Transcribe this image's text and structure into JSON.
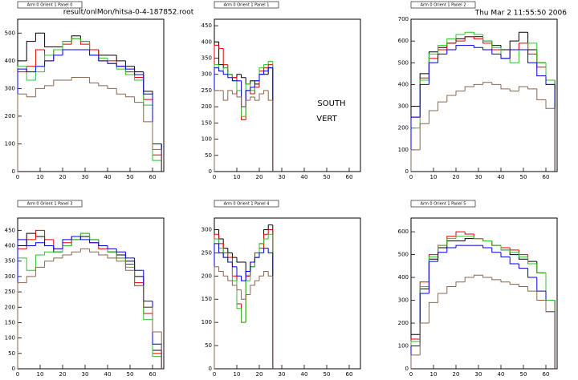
{
  "header": {
    "file": "result/onlMon/hitsa-0-4-187852.root",
    "date": "Thu Mar  2 11:55:50 2006"
  },
  "labels": [
    "SOUTH",
    "VERT"
  ],
  "chart_data": [
    {
      "type": "histogram",
      "title": "Arm 0 Orient 1 Panel 0",
      "bins": [
        0,
        4,
        8,
        12,
        16,
        20,
        24,
        28,
        32,
        36,
        40,
        44,
        48,
        52,
        56,
        60,
        64
      ],
      "xlim": [
        0,
        65
      ],
      "xticks": [
        0,
        10,
        20,
        30,
        40,
        50,
        60
      ],
      "ylim": [
        0,
        550
      ],
      "yticks": [
        0,
        100,
        200,
        300,
        400,
        500
      ],
      "series": [
        {
          "color": "#000000",
          "values": [
            400,
            470,
            500,
            450,
            450,
            470,
            490,
            470,
            440,
            420,
            420,
            400,
            380,
            360,
            290,
            100
          ]
        },
        {
          "color": "#e00000",
          "values": [
            360,
            380,
            440,
            400,
            440,
            460,
            480,
            460,
            440,
            400,
            400,
            380,
            360,
            340,
            260,
            60
          ]
        },
        {
          "color": "#30c030",
          "values": [
            380,
            330,
            360,
            420,
            440,
            470,
            480,
            470,
            420,
            410,
            390,
            370,
            350,
            330,
            240,
            40
          ]
        },
        {
          "color": "#0000e0",
          "values": [
            370,
            360,
            380,
            400,
            420,
            440,
            440,
            440,
            420,
            400,
            390,
            380,
            370,
            350,
            280,
            100
          ]
        },
        {
          "color": "#8b6450",
          "values": [
            280,
            270,
            300,
            310,
            330,
            330,
            340,
            340,
            320,
            310,
            300,
            280,
            270,
            250,
            180,
            80
          ]
        }
      ]
    },
    {
      "type": "histogram",
      "title": "Arm 0 Orient 1 Panel 1",
      "bins": [
        0,
        2,
        4,
        6,
        8,
        10,
        12,
        14,
        16,
        18,
        20,
        22,
        24,
        26
      ],
      "xlim": [
        0,
        65
      ],
      "xticks": [
        0,
        10,
        20,
        30,
        40,
        50,
        60
      ],
      "ylim": [
        0,
        470
      ],
      "yticks": [
        0,
        50,
        100,
        150,
        200,
        250,
        300,
        350,
        400,
        450
      ],
      "series": [
        {
          "color": "#000000",
          "values": [
            400,
            330,
            320,
            300,
            290,
            300,
            290,
            270,
            280,
            270,
            300,
            300,
            320
          ]
        },
        {
          "color": "#e00000",
          "values": [
            390,
            380,
            330,
            300,
            290,
            230,
            160,
            250,
            240,
            260,
            310,
            320,
            330
          ]
        },
        {
          "color": "#30c030",
          "values": [
            330,
            310,
            320,
            300,
            280,
            250,
            170,
            270,
            250,
            280,
            320,
            330,
            340
          ]
        },
        {
          "color": "#0000e0",
          "values": [
            320,
            310,
            300,
            290,
            280,
            280,
            200,
            250,
            260,
            280,
            300,
            310,
            320
          ]
        },
        {
          "color": "#8b6450",
          "values": [
            250,
            250,
            220,
            250,
            240,
            230,
            200,
            220,
            230,
            220,
            240,
            250,
            220
          ]
        }
      ]
    },
    {
      "type": "histogram",
      "title": "Arm 0 Orient 1 Panel 2",
      "bins": [
        0,
        4,
        8,
        12,
        16,
        20,
        24,
        28,
        32,
        36,
        40,
        44,
        48,
        52,
        56,
        60,
        64
      ],
      "xlim": [
        0,
        65
      ],
      "xticks": [
        0,
        10,
        20,
        30,
        40,
        50,
        60
      ],
      "ylim": [
        0,
        700
      ],
      "yticks": [
        0,
        100,
        200,
        300,
        400,
        500,
        600,
        700
      ],
      "series": [
        {
          "color": "#000000",
          "values": [
            300,
            450,
            550,
            570,
            590,
            610,
            620,
            620,
            600,
            580,
            560,
            600,
            640,
            560,
            500,
            420
          ]
        },
        {
          "color": "#e00000",
          "values": [
            250,
            430,
            520,
            560,
            590,
            600,
            620,
            610,
            590,
            560,
            520,
            560,
            590,
            540,
            480,
            400
          ]
        },
        {
          "color": "#30c030",
          "values": [
            200,
            420,
            540,
            580,
            610,
            630,
            640,
            630,
            600,
            570,
            520,
            500,
            560,
            590,
            500,
            420
          ]
        },
        {
          "color": "#0000e0",
          "values": [
            250,
            400,
            500,
            540,
            560,
            580,
            580,
            570,
            560,
            540,
            520,
            560,
            560,
            500,
            440,
            400
          ]
        },
        {
          "color": "#8b6450",
          "values": [
            100,
            220,
            280,
            320,
            350,
            370,
            390,
            400,
            410,
            400,
            380,
            370,
            390,
            380,
            330,
            290
          ]
        }
      ]
    },
    {
      "type": "histogram",
      "title": "Arm 0 Orient 1 Panel 3",
      "bins": [
        0,
        4,
        8,
        12,
        16,
        20,
        24,
        28,
        32,
        36,
        40,
        44,
        48,
        52,
        56,
        60,
        64
      ],
      "xlim": [
        0,
        65
      ],
      "xticks": [
        0,
        10,
        20,
        30,
        40,
        50,
        60
      ],
      "ylim": [
        0,
        490
      ],
      "yticks": [
        0,
        50,
        100,
        150,
        200,
        250,
        300,
        350,
        400,
        450
      ],
      "series": [
        {
          "color": "#000000",
          "values": [
            400,
            440,
            430,
            400,
            380,
            400,
            420,
            430,
            420,
            400,
            380,
            370,
            350,
            300,
            200,
            60
          ]
        },
        {
          "color": "#e00000",
          "values": [
            390,
            420,
            450,
            420,
            390,
            410,
            430,
            440,
            410,
            390,
            380,
            360,
            340,
            280,
            180,
            50
          ]
        },
        {
          "color": "#30c030",
          "values": [
            360,
            320,
            370,
            380,
            380,
            400,
            420,
            440,
            420,
            400,
            380,
            360,
            330,
            270,
            160,
            40
          ]
        },
        {
          "color": "#0000e0",
          "values": [
            420,
            400,
            410,
            400,
            390,
            420,
            430,
            420,
            410,
            400,
            390,
            380,
            360,
            320,
            220,
            80
          ]
        },
        {
          "color": "#8b6450",
          "values": [
            280,
            300,
            330,
            350,
            360,
            370,
            380,
            390,
            380,
            370,
            360,
            350,
            320,
            270,
            200,
            120
          ]
        }
      ]
    },
    {
      "type": "histogram",
      "title": "Arm 0 Orient 1 Panel 4",
      "bins": [
        0,
        2,
        4,
        6,
        8,
        10,
        12,
        14,
        16,
        18,
        20,
        22,
        24,
        26
      ],
      "xlim": [
        0,
        65
      ],
      "xticks": [
        0,
        10,
        20,
        30,
        40,
        50,
        60
      ],
      "ylim": [
        0,
        325
      ],
      "yticks": [
        0,
        50,
        100,
        150,
        200,
        250,
        300
      ],
      "series": [
        {
          "color": "#000000",
          "values": [
            300,
            280,
            260,
            250,
            240,
            230,
            230,
            200,
            220,
            240,
            270,
            300,
            310
          ]
        },
        {
          "color": "#e00000",
          "values": [
            290,
            270,
            250,
            240,
            200,
            140,
            100,
            200,
            230,
            250,
            260,
            290,
            300
          ]
        },
        {
          "color": "#30c030",
          "values": [
            280,
            260,
            240,
            230,
            190,
            130,
            100,
            190,
            220,
            240,
            270,
            280,
            290
          ]
        },
        {
          "color": "#0000e0",
          "values": [
            270,
            250,
            240,
            230,
            220,
            200,
            190,
            210,
            230,
            240,
            250,
            260,
            250
          ]
        },
        {
          "color": "#8b6450",
          "values": [
            220,
            210,
            200,
            190,
            180,
            170,
            150,
            160,
            180,
            190,
            200,
            210,
            200
          ]
        }
      ]
    },
    {
      "type": "histogram",
      "title": "Arm 0 Orient 1 Panel 5",
      "bins": [
        0,
        4,
        8,
        12,
        16,
        20,
        24,
        28,
        32,
        36,
        40,
        44,
        48,
        52,
        56,
        60,
        64
      ],
      "xlim": [
        0,
        65
      ],
      "xticks": [
        0,
        10,
        20,
        30,
        40,
        50,
        60
      ],
      "ylim": [
        0,
        660
      ],
      "yticks": [
        0,
        100,
        200,
        300,
        400,
        500,
        600
      ],
      "series": [
        {
          "color": "#000000",
          "values": [
            150,
            350,
            480,
            530,
            560,
            560,
            570,
            570,
            560,
            540,
            520,
            500,
            480,
            470,
            420,
            300
          ]
        },
        {
          "color": "#e00000",
          "values": [
            130,
            380,
            500,
            540,
            580,
            600,
            590,
            570,
            560,
            540,
            530,
            520,
            500,
            460,
            420,
            300
          ]
        },
        {
          "color": "#30c030",
          "values": [
            120,
            360,
            490,
            540,
            570,
            580,
            580,
            570,
            560,
            540,
            520,
            510,
            490,
            460,
            420,
            300
          ]
        },
        {
          "color": "#0000e0",
          "values": [
            100,
            330,
            470,
            510,
            530,
            540,
            540,
            540,
            530,
            510,
            490,
            460,
            440,
            400,
            340,
            250
          ]
        },
        {
          "color": "#8b6450",
          "values": [
            60,
            200,
            290,
            330,
            360,
            380,
            400,
            410,
            400,
            390,
            380,
            370,
            360,
            340,
            300,
            250
          ]
        }
      ]
    }
  ]
}
